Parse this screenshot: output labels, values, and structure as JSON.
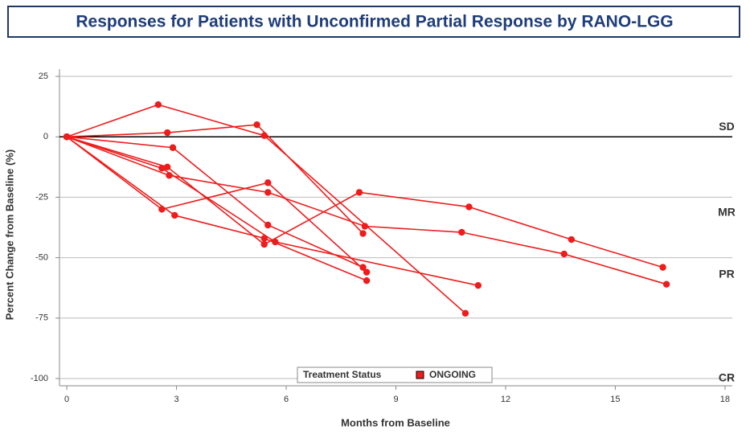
{
  "chart_data": {
    "type": "line",
    "title": "Responses for Patients with Unconfirmed Partial Response by RANO-LGG",
    "x_label": "Months from Baseline",
    "y_label": "Percent Change from Baseline (%)",
    "color": "#ee1c1c",
    "xlim": [
      -0.2,
      18.2
    ],
    "xticks": [
      0,
      3,
      6,
      9,
      12,
      15,
      18
    ],
    "ylim": [
      -103,
      28
    ],
    "yticks": [
      25,
      0,
      -25,
      -50,
      -75,
      -100
    ],
    "grid": true,
    "legend_title": "Treatment Status",
    "legend_label": "ONGOING",
    "annotations": [
      {
        "text": "SD",
        "y": 4
      },
      {
        "text": "MR",
        "y": -31.5
      },
      {
        "text": "PR",
        "y": -57
      },
      {
        "text": "CR",
        "y": -100
      }
    ],
    "series": [
      {
        "x": [
          0,
          2.5,
          5.4,
          10.9
        ],
        "values": [
          0,
          13.3,
          0.5,
          -73
        ]
      },
      {
        "x": [
          0,
          2.75,
          5.2,
          8.1
        ],
        "values": [
          0,
          1.7,
          5,
          -40
        ]
      },
      {
        "x": [
          0,
          2.8,
          5.5,
          8.15,
          10.8,
          13.6,
          16.4
        ],
        "values": [
          0,
          -16,
          -23,
          -37,
          -39.5,
          -48.5,
          -61
        ]
      },
      {
        "x": [
          0,
          2.9,
          5.5,
          8.1
        ],
        "values": [
          0,
          -4.5,
          -36.5,
          -54
        ]
      },
      {
        "x": [
          0,
          2.6,
          5.5,
          8.2
        ],
        "values": [
          0,
          -30,
          -19,
          -56
        ]
      },
      {
        "x": [
          0,
          2.95,
          5.4,
          8.2
        ],
        "values": [
          0,
          -32.5,
          -42,
          -59.5
        ]
      },
      {
        "x": [
          0,
          2.6,
          5.7,
          11.25
        ],
        "values": [
          0,
          -13,
          -43.5,
          -61.5
        ]
      },
      {
        "x": [
          0,
          2.75,
          5.4,
          8.0,
          11,
          13.8,
          16.3
        ],
        "values": [
          0,
          -12.5,
          -44.5,
          -23,
          -29,
          -42.5,
          -54
        ]
      }
    ]
  }
}
